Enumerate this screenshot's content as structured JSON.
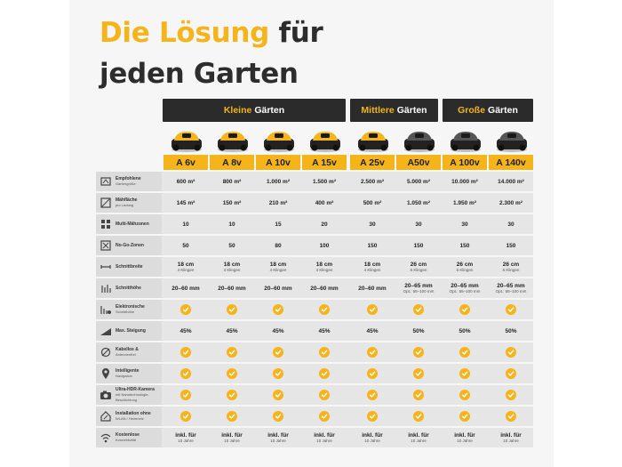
{
  "title": {
    "line1_accent": "Die Lösung",
    "line1_rest": "für",
    "line2": "jeden Garten"
  },
  "groups": [
    {
      "accent": "Kleine",
      "rest": "Gärten"
    },
    {
      "accent": "Mittlere",
      "rest": "Gärten"
    },
    {
      "accent": "Große",
      "rest": "Gärten"
    }
  ],
  "models": [
    "A 6v",
    "A 8v",
    "A 10v",
    "A 15v",
    "A 25v",
    "A50v",
    "A 100v",
    "A 140v"
  ],
  "colors": {
    "accent": "#f4b41a",
    "dark": "#2b2b2b",
    "yellow_mower": "#f4b41a",
    "grey_mower": "#555555"
  },
  "rows": [
    {
      "icon": "garden-size-icon",
      "label": "Empfohlene",
      "label_sub": "Gartengröße",
      "cells": [
        "600 m²",
        "800 m²",
        "1.000 m²",
        "1.500 m²",
        "2.500 m²",
        "5.000 m²",
        "10.000 m²",
        "14.000 m²"
      ]
    },
    {
      "icon": "area-icon",
      "label": "Mähfläche",
      "label_sub": "pro Ladung",
      "cells": [
        "145 m²",
        "150 m²",
        "210 m²",
        "400 m²",
        "500 m²",
        "1.050 m²",
        "1.950 m²",
        "2.300 m²"
      ]
    },
    {
      "icon": "zones-icon",
      "label": "Multi-Mähzonen",
      "label_sub": "",
      "cells": [
        "10",
        "10",
        "15",
        "20",
        "30",
        "30",
        "30",
        "30"
      ]
    },
    {
      "icon": "no-go-icon",
      "label": "No-Go-Zonen",
      "label_sub": "",
      "cells": [
        "50",
        "50",
        "80",
        "100",
        "150",
        "150",
        "150",
        "150"
      ]
    },
    {
      "icon": "cut-width-icon",
      "label": "Schnittbreite",
      "label_sub": "",
      "cells": [
        "18 cm|4 Klingen",
        "18 cm|4 Klingen",
        "18 cm|4 Klingen",
        "18 cm|4 Klingen",
        "18 cm|4 Klingen",
        "26 cm|6 Klingen",
        "26 cm|6 Klingen",
        "26 cm|6 Klingen"
      ]
    },
    {
      "icon": "cut-height-icon",
      "label": "Schnitthöhe",
      "label_sub": "",
      "cells": [
        "20–60 mm",
        "20–60 mm",
        "20–60 mm",
        "20–60 mm",
        "20–60 mm",
        "20–65 mm|Opt.: 55–100 mm",
        "20–65 mm|Opt.: 55–100 mm",
        "20–65 mm|Opt.: 55–100 mm"
      ]
    },
    {
      "icon": "electronic-height-icon",
      "label": "Elektronische",
      "label_sub": "Schnitthöhe",
      "cells": [
        "check",
        "check",
        "check",
        "check",
        "check",
        "check",
        "check",
        "check"
      ]
    },
    {
      "icon": "slope-icon",
      "label": "Max. Steigung",
      "label_sub": "",
      "cells": [
        "45%",
        "45%",
        "45%",
        "45%",
        "45%",
        "50%",
        "50%",
        "50%"
      ]
    },
    {
      "icon": "wireless-icon",
      "label": "Kabellos &",
      "label_sub": "Antennenfrei",
      "cells": [
        "check",
        "check",
        "check",
        "check",
        "check",
        "check",
        "check",
        "check"
      ]
    },
    {
      "icon": "navigation-icon",
      "label": "Intelligente",
      "label_sub": "Navigation",
      "cells": [
        "check",
        "check",
        "check",
        "check",
        "check",
        "check",
        "check",
        "check"
      ]
    },
    {
      "icon": "camera-icon",
      "label": "Ultra-HDR-Kamera",
      "label_sub": "mit Nanotechnologie-Beschichtung",
      "cells": [
        "check",
        "check",
        "check",
        "check",
        "check",
        "check",
        "check",
        "check"
      ]
    },
    {
      "icon": "installation-icon",
      "label": "Installation ohne",
      "label_sub": "WLAN / Heimnetz",
      "cells": [
        "check",
        "check",
        "check",
        "check",
        "check",
        "check",
        "check",
        "check"
      ]
    },
    {
      "icon": "connectivity-icon",
      "label": "Kostenlose",
      "label_sub": "Konnektivität",
      "cells": [
        "inkl. für|10 Jahre",
        "inkl. für|10 Jahre",
        "inkl. für|10 Jahre",
        "inkl. für|10 Jahre",
        "inkl. für|10 Jahre",
        "inkl. für|10 Jahre",
        "inkl. für|10 Jahre",
        "inkl. für|10 Jahre"
      ]
    }
  ]
}
